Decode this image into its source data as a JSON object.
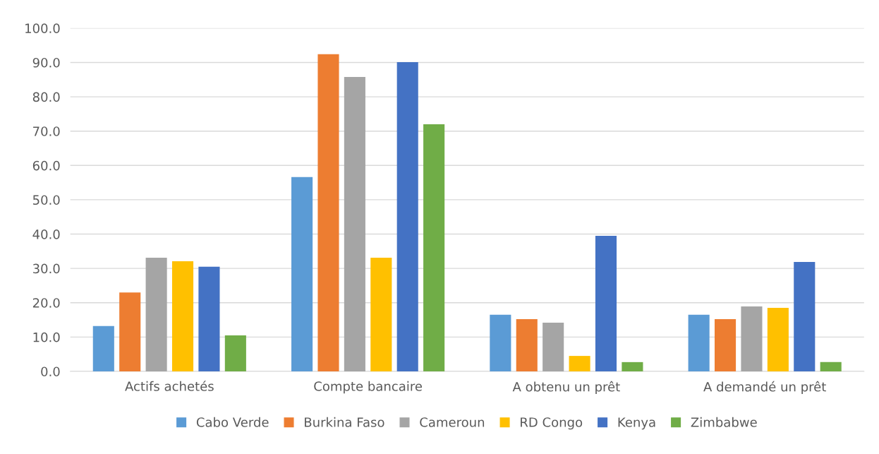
{
  "chart_data": {
    "type": "bar",
    "categories": [
      "Actifs achetés",
      "Compte bancaire",
      "A obtenu un prêt",
      "A demandé un prêt"
    ],
    "series": [
      {
        "name": "Cabo Verde",
        "color": "#5b9bd5",
        "values": [
          13.2,
          56.6,
          16.5,
          16.5
        ]
      },
      {
        "name": "Burkina Faso",
        "color": "#ed7d31",
        "values": [
          23.0,
          92.4,
          15.2,
          15.2
        ]
      },
      {
        "name": "Cameroun",
        "color": "#a5a5a5",
        "values": [
          33.1,
          85.8,
          14.2,
          18.9
        ]
      },
      {
        "name": "RD Congo",
        "color": "#ffc000",
        "values": [
          32.1,
          33.1,
          4.5,
          18.5
        ]
      },
      {
        "name": "Kenya",
        "color": "#4472c4",
        "values": [
          30.5,
          90.1,
          39.5,
          31.9
        ]
      },
      {
        "name": "Zimbabwe",
        "color": "#70ad47",
        "values": [
          10.5,
          72.0,
          2.7,
          2.7
        ]
      }
    ],
    "ylim": [
      0,
      100
    ],
    "yticks": [
      {
        "value": 0,
        "label": "0.0"
      },
      {
        "value": 10,
        "label": "10.0"
      },
      {
        "value": 20,
        "label": "20.0"
      },
      {
        "value": 30,
        "label": "30.0"
      },
      {
        "value": 40,
        "label": "40.0"
      },
      {
        "value": 50,
        "label": "50.0"
      },
      {
        "value": 60,
        "label": "60.0"
      },
      {
        "value": 70,
        "label": "70.0"
      },
      {
        "value": 80,
        "label": "80.0"
      },
      {
        "value": 90,
        "label": "90.0"
      },
      {
        "value": 100,
        "label": "100.0"
      }
    ],
    "grid": "y",
    "legend": "bottom"
  }
}
